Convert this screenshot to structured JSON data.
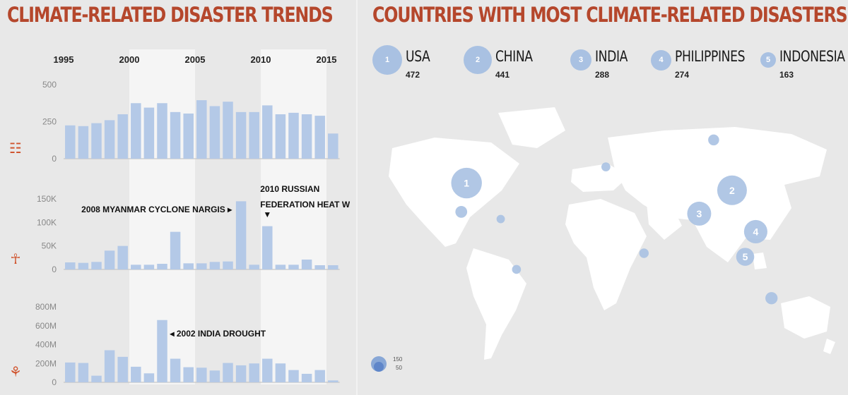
{
  "left_title": "CLIMATE-RELATED DISASTER TRENDS",
  "right_title": "COUNTRIES WITH MOST CLIMATE-RELATED DISASTERS",
  "chart_data": [
    {
      "type": "bar",
      "icon": "disaster-count-icon",
      "x": [
        1995,
        1996,
        1997,
        1998,
        1999,
        2000,
        2001,
        2002,
        2003,
        2004,
        2005,
        2006,
        2007,
        2008,
        2009,
        2010,
        2011,
        2012,
        2013,
        2014,
        2015
      ],
      "values": [
        225,
        220,
        240,
        260,
        300,
        375,
        345,
        375,
        315,
        305,
        395,
        355,
        385,
        315,
        315,
        360,
        300,
        310,
        300,
        290,
        170
      ],
      "yticks": [
        "500",
        "250",
        "0"
      ],
      "ylim": [
        0,
        500
      ],
      "xticks": [
        "1995",
        "2000",
        "2005",
        "2010",
        "2015"
      ]
    },
    {
      "type": "bar",
      "icon": "deaths-icon",
      "x": [
        1995,
        1996,
        1997,
        1998,
        1999,
        2000,
        2001,
        2002,
        2003,
        2004,
        2005,
        2006,
        2007,
        2008,
        2009,
        2010,
        2011,
        2012,
        2013,
        2014,
        2015
      ],
      "values": [
        15000,
        14000,
        16000,
        40000,
        50000,
        10000,
        10000,
        12000,
        80000,
        13000,
        13000,
        16000,
        17000,
        145000,
        10000,
        92000,
        10000,
        10000,
        21000,
        9000,
        9000
      ],
      "yticks": [
        "150K",
        "100K",
        "50K",
        "0"
      ],
      "ylim": [
        0,
        150000
      ],
      "annotations": [
        {
          "text": "2008 MYANMAR CYCLONE NARGIS ▸",
          "year": 2008
        },
        {
          "text": "2010 RUSSIAN",
          "year": 2010
        },
        {
          "text": "FEDERATION HEAT WAVE",
          "year": 2010
        },
        {
          "text": "▼",
          "year": 2010
        }
      ]
    },
    {
      "type": "bar",
      "icon": "people-affected-icon",
      "x": [
        1995,
        1996,
        1997,
        1998,
        1999,
        2000,
        2001,
        2002,
        2003,
        2004,
        2005,
        2006,
        2007,
        2008,
        2009,
        2010,
        2011,
        2012,
        2013,
        2014,
        2015
      ],
      "values": [
        210,
        205,
        70,
        340,
        270,
        165,
        95,
        660,
        250,
        160,
        155,
        125,
        205,
        180,
        200,
        250,
        200,
        130,
        90,
        130,
        20
      ],
      "yticks": [
        "800M",
        "600M",
        "400M",
        "200M",
        "0"
      ],
      "ylim": [
        0,
        800
      ],
      "annotations": [
        {
          "text": "◂ 2002 INDIA DROUGHT",
          "year": 2002
        }
      ]
    }
  ],
  "countries": [
    {
      "rank": "1",
      "name": "USA",
      "value": "472"
    },
    {
      "rank": "2",
      "name": "CHINA",
      "value": "441"
    },
    {
      "rank": "3",
      "name": "INDIA",
      "value": "288"
    },
    {
      "rank": "4",
      "name": "PHILIPPINES",
      "value": "274"
    },
    {
      "rank": "5",
      "name": "INDONESIA",
      "value": "163"
    }
  ],
  "map_bubbles": [
    {
      "label": "1",
      "lon": -98,
      "lat": 39,
      "value": 472
    },
    {
      "label": "2",
      "lon": 104,
      "lat": 35,
      "value": 441
    },
    {
      "label": "3",
      "lon": 79,
      "lat": 22,
      "value": 288
    },
    {
      "label": "4",
      "lon": 122,
      "lat": 12,
      "value": 274
    },
    {
      "label": "5",
      "lon": 114,
      "lat": -2,
      "value": 163
    },
    {
      "label": "",
      "lon": 90,
      "lat": 63,
      "value": 60
    },
    {
      "label": "",
      "lon": 134,
      "lat": -25,
      "value": 75
    },
    {
      "label": "",
      "lon": -60,
      "lat": -9,
      "value": 40
    },
    {
      "label": "",
      "lon": -102,
      "lat": 23,
      "value": 70
    },
    {
      "label": "",
      "lon": 37,
      "lat": 0,
      "value": 45
    },
    {
      "label": "",
      "lon": 8,
      "lat": 48,
      "value": 40
    },
    {
      "label": "",
      "lon": -72,
      "lat": 19,
      "value": 35
    }
  ],
  "map_legend": {
    "top": "150",
    "bottom": "50"
  }
}
